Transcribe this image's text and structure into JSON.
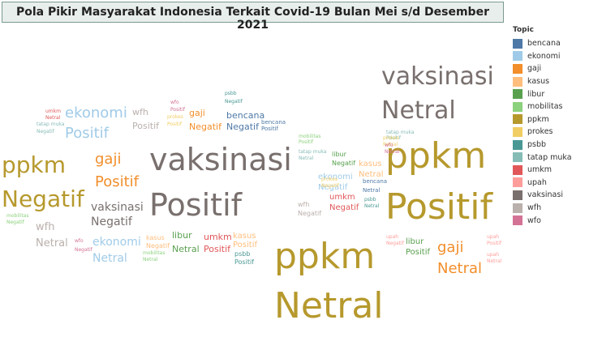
{
  "title": "Pola Pikir Masyarakat Indonesia Terkait Covid-19 Bulan Mei s/d Desember 2021",
  "legend": {
    "title": "Topic",
    "items": [
      {
        "label": "bencana",
        "color": "#4e79a7"
      },
      {
        "label": "ekonomi",
        "color": "#a0cbe8"
      },
      {
        "label": "gaji",
        "color": "#f28e2b"
      },
      {
        "label": "kasus",
        "color": "#ffbe7d"
      },
      {
        "label": "libur",
        "color": "#59a14f"
      },
      {
        "label": "mobilitas",
        "color": "#8cd17d"
      },
      {
        "label": "ppkm",
        "color": "#b6992d"
      },
      {
        "label": "prokes",
        "color": "#f1ce63"
      },
      {
        "label": "psbb",
        "color": "#499894"
      },
      {
        "label": "tatap muka",
        "color": "#86bcb6"
      },
      {
        "label": "umkm",
        "color": "#e15759"
      },
      {
        "label": "upah",
        "color": "#ff9d9a"
      },
      {
        "label": "vaksinasi",
        "color": "#79706e"
      },
      {
        "label": "wfh",
        "color": "#bab0ac"
      },
      {
        "label": "wfo",
        "color": "#d37295"
      }
    ]
  },
  "chart_data": {
    "type": "word-cloud",
    "title": "Pola Pikir Masyarakat Indonesia Terkait Covid-19 Bulan Mei s/d Desember 2021",
    "words": [
      {
        "topic": "vaksinasi",
        "sentiment": "Netral"
      },
      {
        "topic": "vaksinasi",
        "sentiment": "Positif"
      },
      {
        "topic": "vaksinasi",
        "sentiment": "Negatif"
      },
      {
        "topic": "ppkm",
        "sentiment": "Positif"
      },
      {
        "topic": "ppkm",
        "sentiment": "Netral"
      },
      {
        "topic": "ppkm",
        "sentiment": "Negatif"
      },
      {
        "topic": "ekonomi",
        "sentiment": "Positif"
      },
      {
        "topic": "ekonomi",
        "sentiment": "Netral"
      },
      {
        "topic": "ekonomi",
        "sentiment": "Negatif"
      },
      {
        "topic": "gaji",
        "sentiment": "Positif"
      },
      {
        "topic": "gaji",
        "sentiment": "Netral"
      },
      {
        "topic": "gaji",
        "sentiment": "Negatif"
      },
      {
        "topic": "wfh",
        "sentiment": "Positif"
      },
      {
        "topic": "wfh",
        "sentiment": "Netral"
      },
      {
        "topic": "wfh",
        "sentiment": "Negatif"
      },
      {
        "topic": "bencana",
        "sentiment": "Negatif"
      },
      {
        "topic": "bencana",
        "sentiment": "Positif"
      },
      {
        "topic": "bencana",
        "sentiment": "Netral"
      },
      {
        "topic": "kasus",
        "sentiment": "Netral"
      },
      {
        "topic": "kasus",
        "sentiment": "Negatif"
      },
      {
        "topic": "kasus",
        "sentiment": "Positif"
      },
      {
        "topic": "umkm",
        "sentiment": "Positif"
      },
      {
        "topic": "umkm",
        "sentiment": "Negatif"
      },
      {
        "topic": "umkm",
        "sentiment": "Netral"
      },
      {
        "topic": "libur",
        "sentiment": "Netral"
      },
      {
        "topic": "libur",
        "sentiment": "Positif"
      },
      {
        "topic": "libur",
        "sentiment": "Negatif"
      },
      {
        "topic": "psbb",
        "sentiment": "Positif"
      },
      {
        "topic": "psbb",
        "sentiment": "Netral"
      },
      {
        "topic": "psbb",
        "sentiment": "Negatif"
      },
      {
        "topic": "tatap muka",
        "sentiment": "Negatif"
      },
      {
        "topic": "tatap muka",
        "sentiment": "Netral"
      },
      {
        "topic": "tatap muka",
        "sentiment": "Positif"
      },
      {
        "topic": "mobilitas",
        "sentiment": "Negatif"
      },
      {
        "topic": "mobilitas",
        "sentiment": "Positif"
      },
      {
        "topic": "mobilitas",
        "sentiment": "Netral"
      },
      {
        "topic": "prokes",
        "sentiment": "Negatif"
      },
      {
        "topic": "prokes",
        "sentiment": "Netral"
      },
      {
        "topic": "prokes",
        "sentiment": "Positif"
      },
      {
        "topic": "upah",
        "sentiment": "Negatif"
      },
      {
        "topic": "upah",
        "sentiment": "Positif"
      },
      {
        "topic": "upah",
        "sentiment": "Netral"
      },
      {
        "topic": "wfo",
        "sentiment": "Negatif"
      },
      {
        "topic": "wfo",
        "sentiment": "Netral"
      },
      {
        "topic": "wfo",
        "sentiment": "Positif"
      }
    ]
  }
}
